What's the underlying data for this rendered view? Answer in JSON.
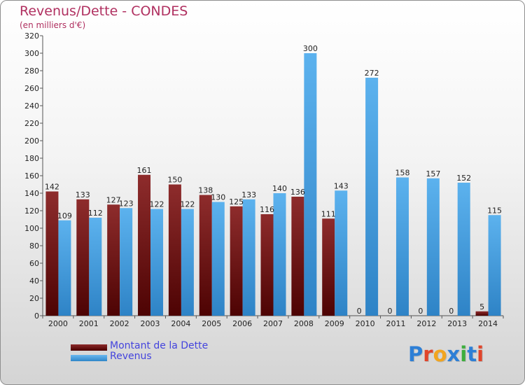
{
  "chart_data": {
    "type": "bar",
    "title": "Revenus/Dette - CONDES",
    "subtitle": "(en milliers d'€)",
    "categories": [
      "2000",
      "2001",
      "2002",
      "2003",
      "2004",
      "2005",
      "2006",
      "2007",
      "2008",
      "2009",
      "2010",
      "2011",
      "2012",
      "2013",
      "2014"
    ],
    "series": [
      {
        "name": "Montant de la Dette",
        "color": "#7a1a1a",
        "values": [
          142,
          133,
          127,
          161,
          150,
          138,
          125,
          116,
          136,
          111,
          0,
          0,
          0,
          0,
          5
        ]
      },
      {
        "name": "Revenus",
        "color": "#4aa3e6",
        "values": [
          109,
          112,
          123,
          122,
          122,
          130,
          133,
          140,
          300,
          143,
          272,
          158,
          157,
          152,
          115
        ]
      }
    ],
    "ylim": [
      0,
      320
    ],
    "ytick_step": 20,
    "grid": false,
    "legend_position": "bottom-left"
  },
  "logo": {
    "text": "Proxiti"
  }
}
